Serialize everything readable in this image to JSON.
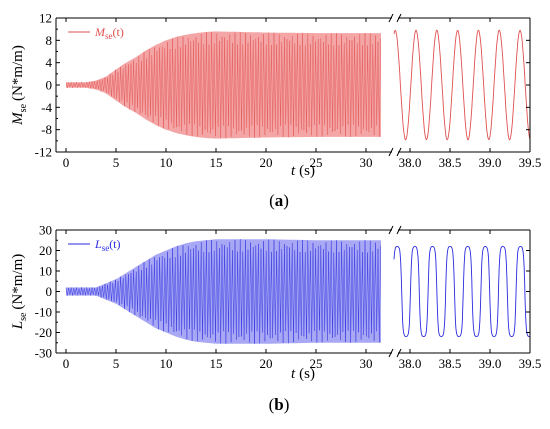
{
  "chart_data": [
    {
      "type": "line",
      "panel_label": "a",
      "ylabel": "M_se (N*m/m)",
      "ylabel_main": "M",
      "ylabel_sub": "se",
      "ylabel_unit": "(N*m/m)",
      "xlabel_main": "t",
      "xlabel_unit": "(s)",
      "ylim": [
        -12,
        12
      ],
      "yticks": [
        "-12",
        "-8",
        "-4",
        "0",
        "4",
        "8",
        "12"
      ],
      "xlim_left": [
        -1,
        32
      ],
      "xticks_left": [
        "0",
        "5",
        "10",
        "15",
        "20",
        "25",
        "30"
      ],
      "xlim_right": [
        37.8,
        39.5
      ],
      "xticks_right": [
        "38.0",
        "38.5",
        "39.0",
        "39.5"
      ],
      "legend_main": "M",
      "legend_sub": "se",
      "legend_tail": "(t)",
      "color": "#e05050",
      "fill_color": "#f4a6a6",
      "envelope": {
        "t": [
          0,
          2,
          3,
          4,
          5,
          6,
          7,
          8,
          9,
          10,
          11,
          12,
          13,
          14,
          15,
          20,
          25,
          31.5
        ],
        "upper": [
          0.5,
          0.5,
          0.8,
          1.5,
          2.8,
          4.0,
          5.0,
          6.2,
          7.2,
          8.0,
          8.6,
          9.0,
          9.3,
          9.5,
          9.6,
          9.4,
          9.3,
          9.3
        ],
        "lower": [
          -0.5,
          -0.5,
          -0.8,
          -1.5,
          -2.8,
          -4.0,
          -5.0,
          -6.2,
          -7.2,
          -8.0,
          -8.6,
          -9.0,
          -9.3,
          -9.5,
          -9.6,
          -9.4,
          -9.3,
          -9.3
        ]
      },
      "detail": {
        "t_start": 37.8,
        "t_end": 39.5,
        "period": 0.26,
        "amplitude": 9.8,
        "phase": 1.2
      }
    },
    {
      "type": "line",
      "panel_label": "b",
      "ylabel": "L_se (N*m/m)",
      "ylabel_main": "L",
      "ylabel_sub": "se",
      "ylabel_unit": "(N*m/m)",
      "xlabel_main": "t",
      "xlabel_unit": "(s)",
      "ylim": [
        -30,
        30
      ],
      "yticks": [
        "-30",
        "-20",
        "-10",
        "0",
        "10",
        "20",
        "30"
      ],
      "xlim_left": [
        -1,
        32
      ],
      "xticks_left": [
        "0",
        "5",
        "10",
        "15",
        "20",
        "25",
        "30"
      ],
      "xlim_right": [
        37.8,
        39.5
      ],
      "xticks_right": [
        "38.0",
        "38.5",
        "39.0",
        "39.5"
      ],
      "legend_main": "L",
      "legend_sub": "se",
      "legend_tail": "(t)",
      "color": "#2a2adf",
      "fill_color": "#a8a8f4",
      "envelope": {
        "t": [
          0,
          3,
          4,
          5,
          6,
          7,
          8,
          9,
          10,
          11,
          12,
          13,
          14,
          15,
          20,
          25,
          31.5
        ],
        "upper": [
          2,
          2,
          4,
          6,
          9,
          12,
          15,
          18,
          20,
          22,
          23.5,
          24.5,
          25,
          25.5,
          25.5,
          25,
          25
        ],
        "lower": [
          -2,
          -2,
          -4,
          -6,
          -9,
          -12,
          -15,
          -18,
          -20,
          -22,
          -23.5,
          -24.5,
          -25,
          -25.5,
          -25.5,
          -25,
          -25
        ]
      },
      "detail": {
        "t_start": 37.8,
        "t_end": 39.5,
        "period": 0.22,
        "amplitude": 22,
        "phase": 0.4
      }
    }
  ]
}
